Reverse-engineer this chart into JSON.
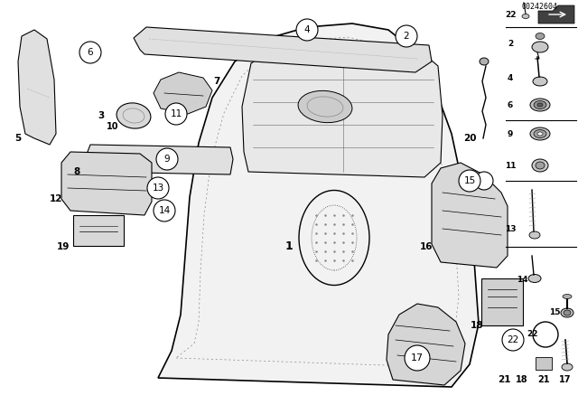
{
  "bg_color": "#ffffff",
  "line_color": "#000000",
  "diagram_code": "00242604",
  "fig_w": 6.4,
  "fig_h": 4.48,
  "dpi": 100
}
